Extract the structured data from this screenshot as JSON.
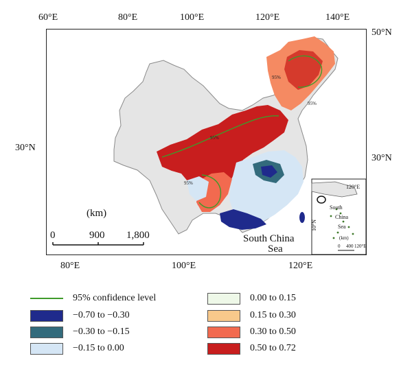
{
  "axes": {
    "top_lon": [
      "60°E",
      "80°E",
      "100°E",
      "120°E",
      "140°E"
    ],
    "bottom_lon": [
      "80°E",
      "100°E",
      "120°E"
    ],
    "right_lat_top": "50°N",
    "right_lat_mid": "30°N",
    "left_lat_mid": "30°N"
  },
  "scale_bar": {
    "unit": "(km)",
    "ticks": [
      "0",
      "900",
      "1,800"
    ]
  },
  "place_labels": {
    "south_china_sea_line1": "South China",
    "south_china_sea_line2": "Sea",
    "confidence_tag": "95%"
  },
  "inset": {
    "lon_label": "120°E",
    "lon_label_bottom": "120°E",
    "lat_label": "10°N",
    "south": "South",
    "china": "China",
    "sea": "Sea",
    "km": "(km)",
    "tick0": "0",
    "tick400": "400"
  },
  "legend": {
    "confidence_label": "95% confidence level",
    "confidence_color": "#3f9a2a",
    "items": [
      {
        "label": "−0.70 to −0.30",
        "color": "#1f2a8c"
      },
      {
        "label": "−0.30 to −0.15",
        "color": "#336b7c"
      },
      {
        "label": "−0.15 to 0.00",
        "color": "#d5e6f5"
      },
      {
        "label": "0.00 to 0.15",
        "color": "#eef8e8"
      },
      {
        "label": "0.15 to 0.30",
        "color": "#f8c98b"
      },
      {
        "label": "0.30 to 0.50",
        "color": "#f26a4f"
      },
      {
        "label": "0.50 to 0.72",
        "color": "#c81e1e"
      }
    ]
  }
}
